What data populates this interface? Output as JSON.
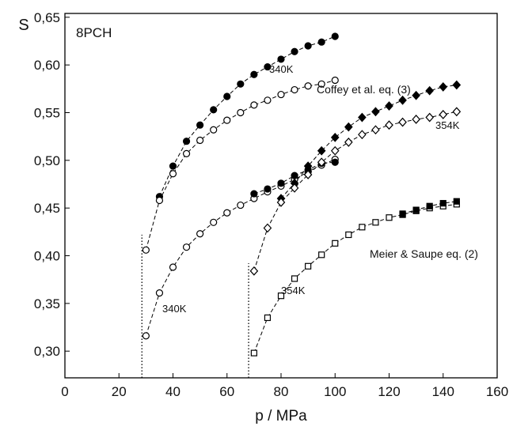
{
  "chart_data": {
    "type": "scatter",
    "xlabel": "p / MPa",
    "ylabel": "S",
    "xlim": [
      0,
      160
    ],
    "ylim": [
      0.272,
      0.654
    ],
    "xticks": [
      0,
      20,
      40,
      60,
      80,
      100,
      120,
      140,
      160
    ],
    "yticks": [
      {
        "value": 0.3,
        "label": "0,30"
      },
      {
        "value": 0.35,
        "label": "0,35"
      },
      {
        "value": 0.4,
        "label": "0,40"
      },
      {
        "value": 0.45,
        "label": "0,45"
      },
      {
        "value": 0.5,
        "label": "0,50"
      },
      {
        "value": 0.55,
        "label": "0,55"
      },
      {
        "value": 0.6,
        "label": "0,60"
      },
      {
        "value": 0.65,
        "label": "0,65"
      }
    ],
    "annotations": [
      "8PCH",
      "340K",
      "Coffey et al. eq. (3)",
      "354K",
      "Meier & Saupe eq. (2)",
      "354K",
      "340K"
    ],
    "vlines": [
      {
        "x": 28.5,
        "top": 0.422
      },
      {
        "x": 68,
        "top": 0.392
      }
    ],
    "series": [
      {
        "marker": "circle",
        "filled": true,
        "color": "#000000",
        "x": [
          35,
          40,
          45,
          50,
          55,
          60,
          65,
          70,
          75,
          80,
          85,
          90,
          95,
          100
        ],
        "values": [
          0.462,
          0.494,
          0.52,
          0.537,
          0.553,
          0.567,
          0.58,
          0.59,
          0.598,
          0.606,
          0.614,
          0.62,
          0.624,
          0.63
        ]
      },
      {
        "marker": "circle",
        "filled": false,
        "color": "#000000",
        "x": [
          30,
          35,
          40,
          45,
          50,
          55,
          60,
          65,
          70,
          75,
          80,
          85,
          90,
          95,
          100
        ],
        "values": [
          0.406,
          0.458,
          0.486,
          0.507,
          0.521,
          0.532,
          0.542,
          0.55,
          0.558,
          0.563,
          0.569,
          0.574,
          0.578,
          0.58,
          0.584
        ]
      },
      {
        "marker": "circle",
        "filled": false,
        "color": "#000000",
        "x": [
          30,
          35,
          40,
          45,
          50,
          55,
          60,
          65,
          70,
          75,
          80,
          85,
          90,
          95,
          100
        ],
        "values": [
          0.316,
          0.361,
          0.388,
          0.409,
          0.423,
          0.435,
          0.445,
          0.453,
          0.46,
          0.467,
          0.473,
          0.48,
          0.488,
          0.495,
          0.501
        ]
      },
      {
        "marker": "circle",
        "filled": true,
        "color": "#000000",
        "x": [
          70,
          75,
          80,
          85,
          90,
          95,
          100
        ],
        "values": [
          0.465,
          0.47,
          0.476,
          0.484,
          0.49,
          0.497,
          0.498
        ]
      },
      {
        "marker": "diamond",
        "filled": true,
        "color": "#000000",
        "x": [
          80,
          85,
          90,
          95,
          100,
          105,
          110,
          115,
          120,
          125,
          130,
          135,
          140,
          145
        ],
        "values": [
          0.46,
          0.476,
          0.494,
          0.51,
          0.524,
          0.535,
          0.545,
          0.551,
          0.557,
          0.563,
          0.568,
          0.573,
          0.577,
          0.579
        ]
      },
      {
        "marker": "diamond",
        "filled": false,
        "color": "#000000",
        "x": [
          70,
          75,
          80,
          85,
          90,
          95,
          100,
          105,
          110,
          115,
          120,
          125,
          130,
          135,
          140,
          145
        ],
        "values": [
          0.384,
          0.429,
          0.456,
          0.471,
          0.485,
          0.498,
          0.51,
          0.519,
          0.527,
          0.532,
          0.537,
          0.54,
          0.543,
          0.545,
          0.548,
          0.551
        ]
      },
      {
        "marker": "square",
        "filled": false,
        "color": "#000000",
        "x": [
          70,
          75,
          80,
          85,
          90,
          95,
          100,
          105,
          110,
          115,
          120,
          125,
          130,
          135,
          140,
          145
        ],
        "values": [
          0.298,
          0.335,
          0.358,
          0.376,
          0.389,
          0.401,
          0.413,
          0.422,
          0.43,
          0.435,
          0.44,
          0.443,
          0.447,
          0.45,
          0.452,
          0.454
        ]
      },
      {
        "marker": "square",
        "filled": true,
        "color": "#000000",
        "x": [
          125,
          130,
          135,
          140,
          145
        ],
        "values": [
          0.444,
          0.448,
          0.452,
          0.455,
          0.457
        ]
      }
    ]
  }
}
